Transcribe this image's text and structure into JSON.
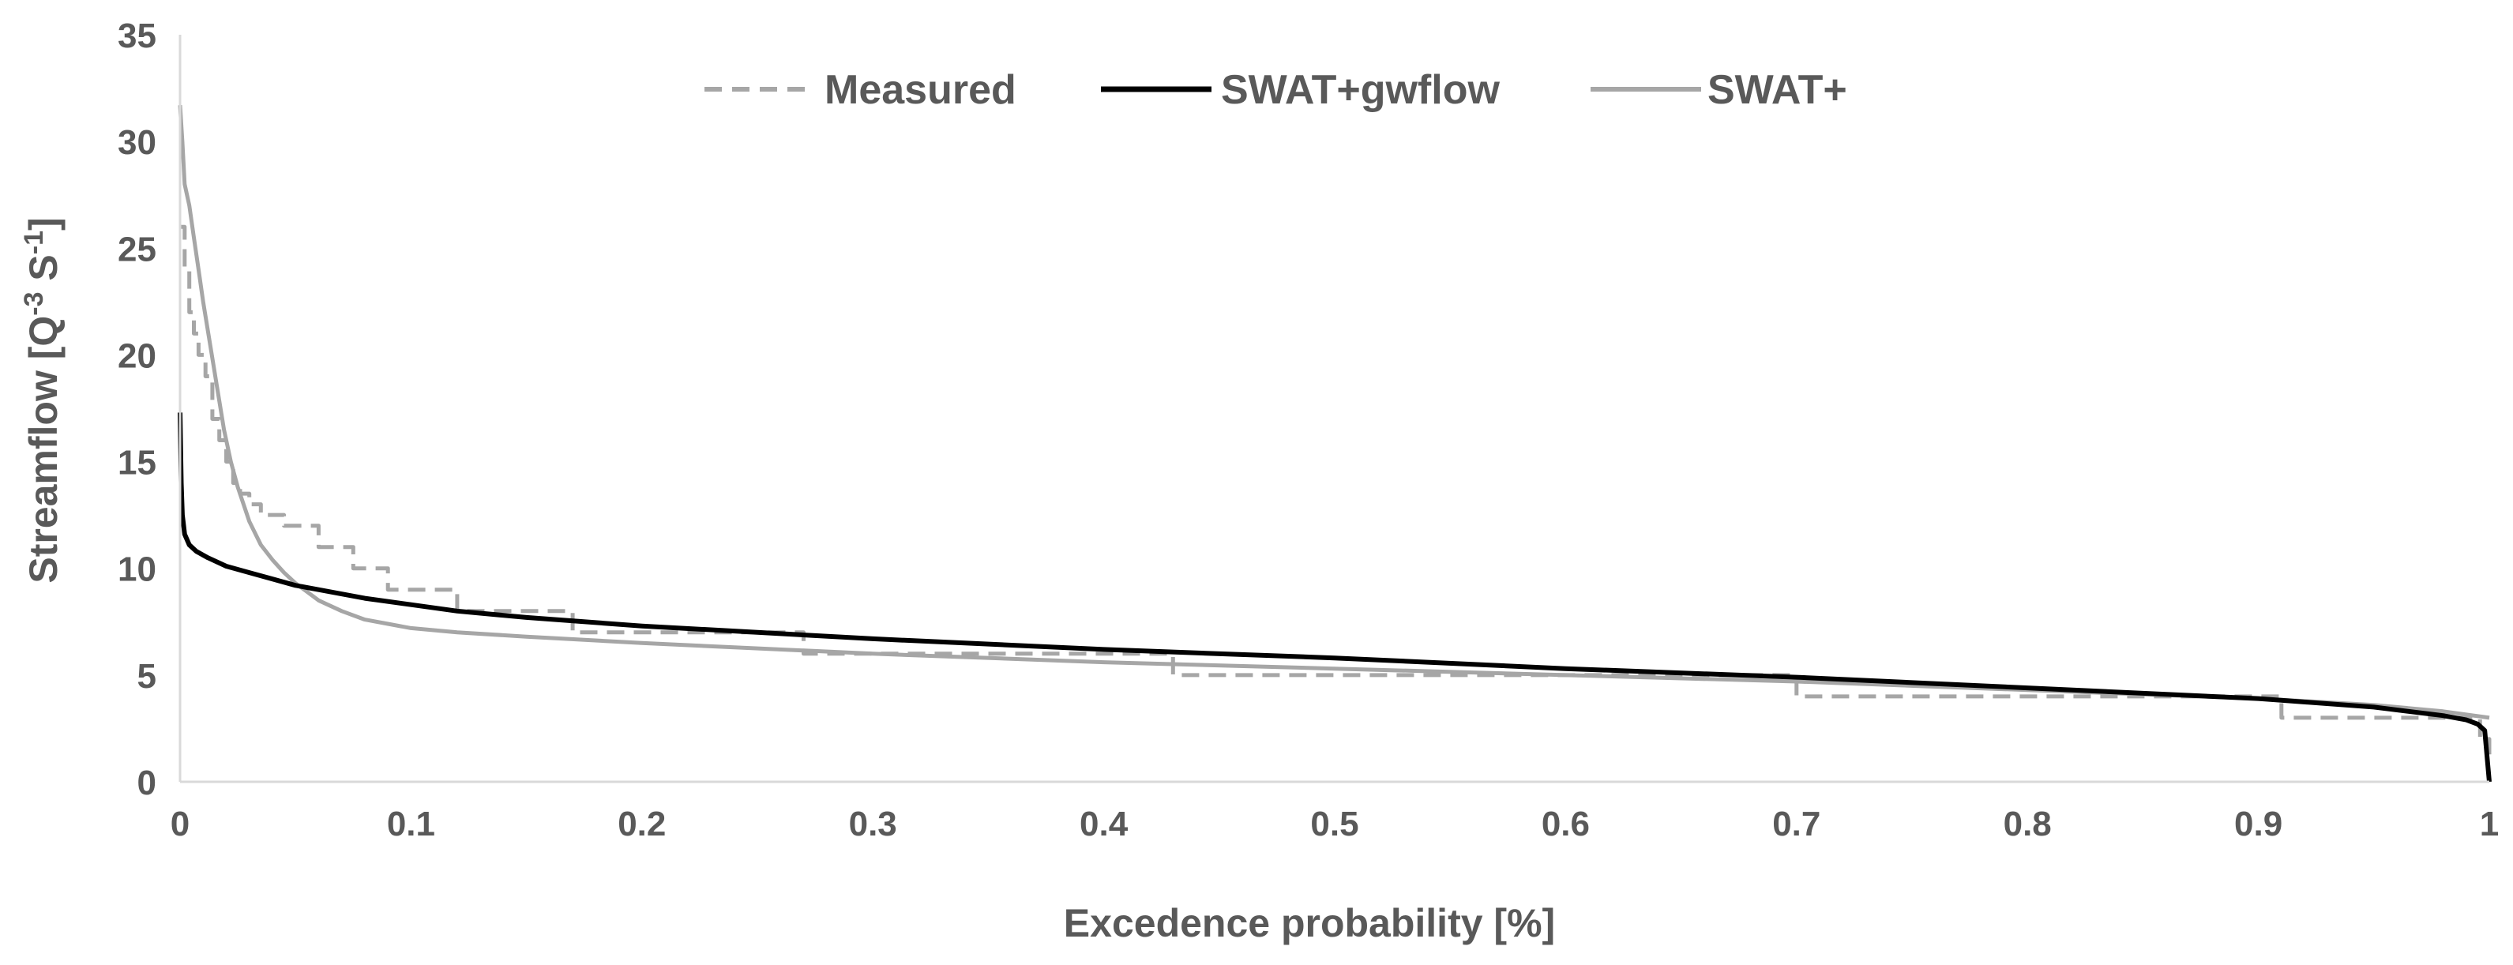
{
  "chart_data": {
    "type": "line",
    "title": "",
    "xlabel": "Excedence probability [%]",
    "ylabel_parts": {
      "base": "Streamflow [Q",
      "sup1": "-3",
      "mid": " S",
      "sup2": "-1",
      "end": "]"
    },
    "xlim": [
      0,
      1
    ],
    "ylim": [
      0,
      35
    ],
    "xticks": [
      0,
      0.1,
      0.2,
      0.3,
      0.4,
      0.5,
      0.6,
      0.7,
      0.8,
      0.9,
      1
    ],
    "xtick_labels": [
      "0",
      "0.1",
      "0.2",
      "0.3",
      "0.4",
      "0.5",
      "0.6",
      "0.7",
      "0.8",
      "0.9",
      "1"
    ],
    "yticks": [
      0,
      5,
      10,
      15,
      20,
      25,
      30,
      35
    ],
    "ytick_labels": [
      "0",
      "5",
      "10",
      "15",
      "20",
      "25",
      "30",
      "35"
    ],
    "grid": false,
    "legend_position": "top-center",
    "series": [
      {
        "name": "Measured",
        "style": "dashed",
        "step": true,
        "color": "#a6a6a6",
        "x": [
          0,
          0.002,
          0.004,
          0.006,
          0.008,
          0.011,
          0.014,
          0.017,
          0.02,
          0.023,
          0.026,
          0.03,
          0.035,
          0.045,
          0.06,
          0.075,
          0.09,
          0.12,
          0.17,
          0.19,
          0.27,
          0.43,
          0.7,
          0.91,
          0.996,
          1.0
        ],
        "y": [
          26,
          24,
          22,
          21,
          20,
          19,
          17,
          16,
          15,
          14,
          13.5,
          13,
          12.5,
          12,
          11,
          10,
          9,
          8,
          7,
          7,
          6,
          5,
          4,
          3,
          2,
          1
        ]
      },
      {
        "name": "SWAT+gwflow",
        "style": "solid",
        "step": false,
        "color": "#000000",
        "x": [
          0,
          0.0005,
          0.001,
          0.002,
          0.004,
          0.007,
          0.012,
          0.02,
          0.03,
          0.04,
          0.05,
          0.06,
          0.08,
          0.1,
          0.12,
          0.15,
          0.2,
          0.25,
          0.3,
          0.4,
          0.5,
          0.6,
          0.7,
          0.8,
          0.9,
          0.95,
          0.98,
          0.99,
          0.995,
          0.998,
          1.0
        ],
        "y": [
          17.3,
          14,
          12.5,
          11.6,
          11.1,
          10.8,
          10.5,
          10.1,
          9.8,
          9.5,
          9.2,
          9.0,
          8.6,
          8.3,
          8.0,
          7.7,
          7.3,
          7.0,
          6.7,
          6.2,
          5.8,
          5.3,
          4.9,
          4.4,
          3.9,
          3.5,
          3.1,
          2.9,
          2.7,
          2.4,
          0
        ]
      },
      {
        "name": "SWAT+",
        "style": "solid",
        "step": false,
        "color": "#a6a6a6",
        "x": [
          0,
          0.001,
          0.002,
          0.004,
          0.006,
          0.008,
          0.01,
          0.013,
          0.016,
          0.019,
          0.022,
          0.025,
          0.03,
          0.035,
          0.04,
          0.045,
          0.05,
          0.055,
          0.06,
          0.07,
          0.08,
          0.09,
          0.1,
          0.12,
          0.15,
          0.2,
          0.3,
          0.4,
          0.5,
          0.6,
          0.7,
          0.8,
          0.9,
          0.95,
          0.98,
          1.0
        ],
        "y": [
          31.7,
          30,
          28,
          27,
          25.5,
          24,
          22.5,
          20.5,
          18.5,
          16.5,
          15,
          13.8,
          12.2,
          11.1,
          10.4,
          9.8,
          9.3,
          8.9,
          8.5,
          8.0,
          7.6,
          7.4,
          7.2,
          7.0,
          6.8,
          6.5,
          6.0,
          5.6,
          5.3,
          5.0,
          4.7,
          4.3,
          3.9,
          3.6,
          3.3,
          3.0
        ]
      }
    ]
  }
}
